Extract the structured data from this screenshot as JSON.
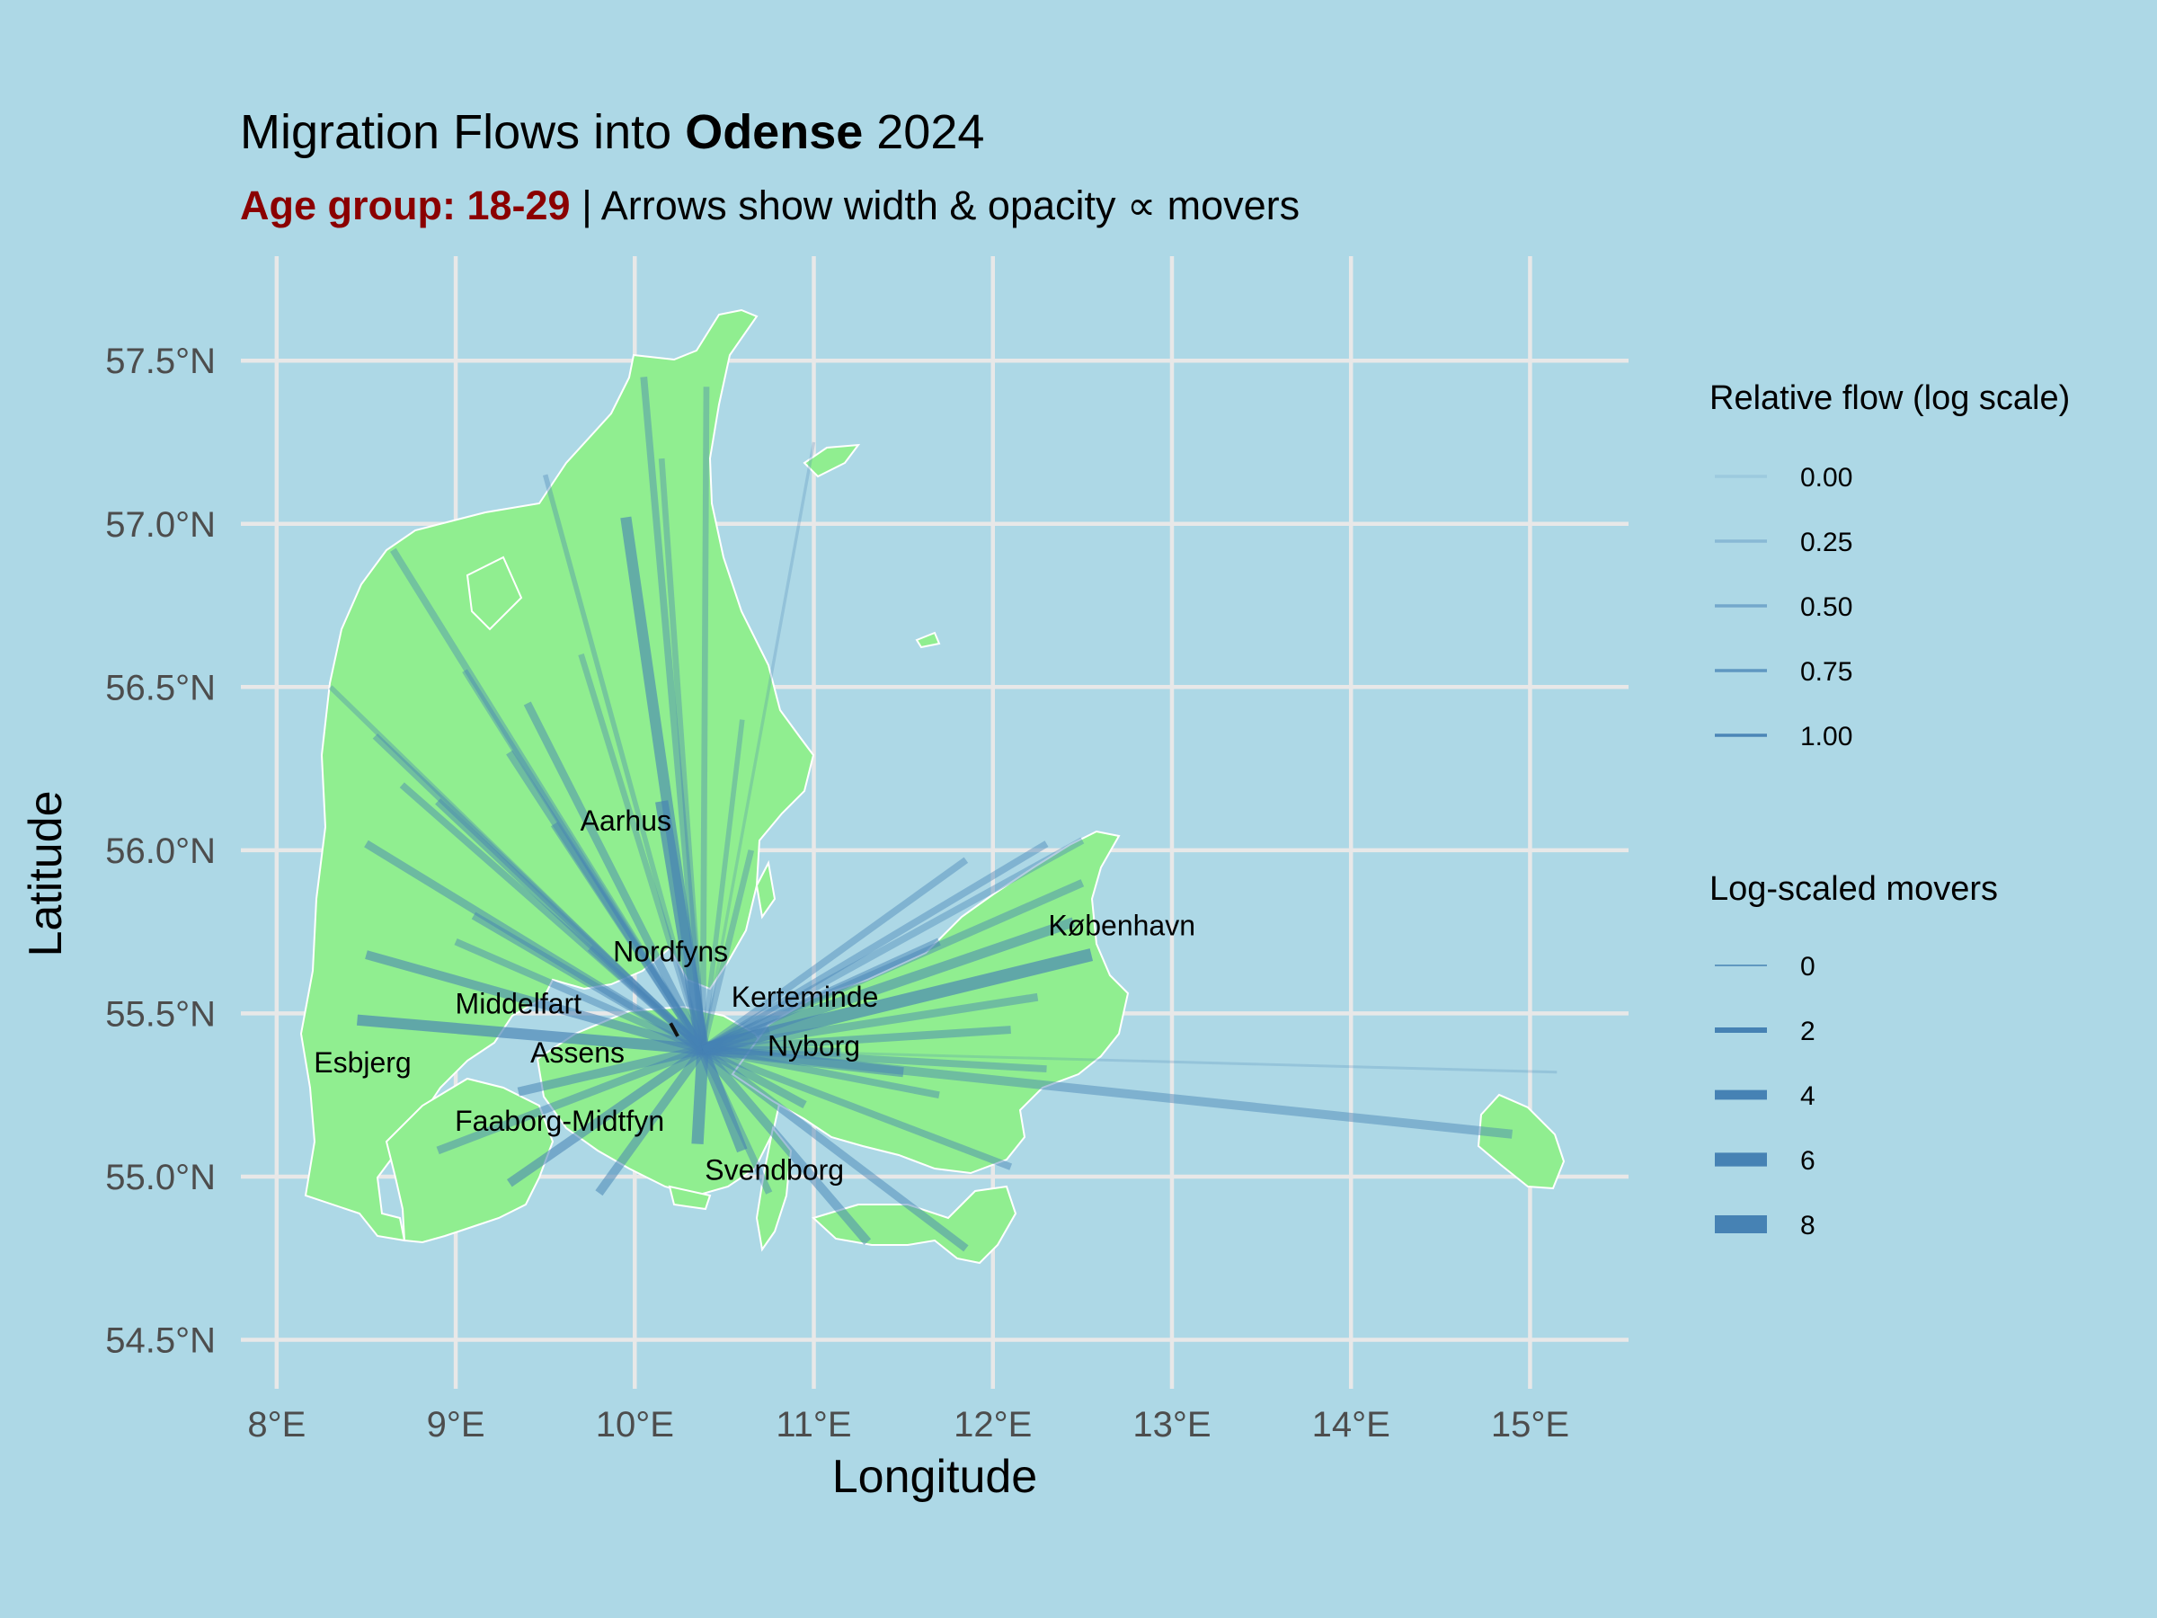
{
  "chart_data": {
    "type": "flow-map",
    "title": {
      "prefix": "Migration Flows into ",
      "city": "Odense",
      "suffix": " 2024"
    },
    "subtitle": {
      "age_label": "Age group: 18-29",
      "rest": " | Arrows show width & opacity ∝ movers"
    },
    "xlabel": "Longitude",
    "ylabel": "Latitude",
    "xlim": [
      7.8,
      15.55
    ],
    "ylim": [
      54.35,
      57.82
    ],
    "x_ticks": [
      {
        "value": 8,
        "label": "8°E"
      },
      {
        "value": 9,
        "label": "9°E"
      },
      {
        "value": 10,
        "label": "10°E"
      },
      {
        "value": 11,
        "label": "11°E"
      },
      {
        "value": 12,
        "label": "12°E"
      },
      {
        "value": 13,
        "label": "13°E"
      },
      {
        "value": 14,
        "label": "14°E"
      },
      {
        "value": 15,
        "label": "15°E"
      }
    ],
    "y_ticks": [
      {
        "value": 54.5,
        "label": "54.5°N"
      },
      {
        "value": 55.0,
        "label": "55.0°N"
      },
      {
        "value": 55.5,
        "label": "55.5°N"
      },
      {
        "value": 56.0,
        "label": "56.0°N"
      },
      {
        "value": 56.5,
        "label": "56.5°N"
      },
      {
        "value": 57.0,
        "label": "57.0°N"
      },
      {
        "value": 57.5,
        "label": "57.5°N"
      }
    ],
    "destination": {
      "name": "Odense",
      "lon": 10.38,
      "lat": 55.39
    },
    "flows": [
      {
        "lon": 8.45,
        "lat": 55.48,
        "rel": 0.95,
        "movers": 5.0
      },
      {
        "lon": 8.5,
        "lat": 55.68,
        "rel": 0.75,
        "movers": 4.0
      },
      {
        "lon": 8.5,
        "lat": 56.02,
        "rel": 0.6,
        "movers": 3.5
      },
      {
        "lon": 8.3,
        "lat": 56.5,
        "rel": 0.35,
        "movers": 2.0
      },
      {
        "lon": 8.55,
        "lat": 56.35,
        "rel": 0.5,
        "movers": 3.0
      },
      {
        "lon": 8.65,
        "lat": 56.92,
        "rel": 0.45,
        "movers": 3.0
      },
      {
        "lon": 8.7,
        "lat": 56.2,
        "rel": 0.55,
        "movers": 3.0
      },
      {
        "lon": 8.9,
        "lat": 56.15,
        "rel": 0.6,
        "movers": 3.5
      },
      {
        "lon": 9.05,
        "lat": 56.55,
        "rel": 0.45,
        "movers": 2.5
      },
      {
        "lon": 9.1,
        "lat": 55.8,
        "rel": 0.6,
        "movers": 3.5
      },
      {
        "lon": 9.0,
        "lat": 55.72,
        "rel": 0.55,
        "movers": 3.0
      },
      {
        "lon": 9.3,
        "lat": 56.3,
        "rel": 0.55,
        "movers": 3.5
      },
      {
        "lon": 9.4,
        "lat": 56.45,
        "rel": 0.6,
        "movers": 3.5
      },
      {
        "lon": 9.5,
        "lat": 57.15,
        "rel": 0.35,
        "movers": 2.0
      },
      {
        "lon": 9.55,
        "lat": 56.08,
        "rel": 0.6,
        "movers": 3.5
      },
      {
        "lon": 9.75,
        "lat": 55.7,
        "rel": 0.55,
        "movers": 3.0
      },
      {
        "lon": 9.7,
        "lat": 56.6,
        "rel": 0.4,
        "movers": 2.5
      },
      {
        "lon": 9.95,
        "lat": 57.02,
        "rel": 0.85,
        "movers": 5.0
      },
      {
        "lon": 10.05,
        "lat": 57.45,
        "rel": 0.5,
        "movers": 3.0
      },
      {
        "lon": 10.15,
        "lat": 57.2,
        "rel": 0.4,
        "movers": 2.5
      },
      {
        "lon": 10.4,
        "lat": 57.42,
        "rel": 0.4,
        "movers": 2.5
      },
      {
        "lon": 10.15,
        "lat": 56.15,
        "rel": 0.95,
        "movers": 6.0
      },
      {
        "lon": 10.6,
        "lat": 56.4,
        "rel": 0.35,
        "movers": 2.0
      },
      {
        "lon": 10.65,
        "lat": 56.0,
        "rel": 0.4,
        "movers": 2.5
      },
      {
        "lon": 11.0,
        "lat": 57.25,
        "rel": 0.15,
        "movers": 1.0
      },
      {
        "lon": 10.23,
        "lat": 55.48,
        "rel": 1.0,
        "movers": 1.5
      },
      {
        "lon": 9.35,
        "lat": 55.26,
        "rel": 0.7,
        "movers": 4.0
      },
      {
        "lon": 9.3,
        "lat": 54.98,
        "rel": 0.75,
        "movers": 4.0
      },
      {
        "lon": 8.9,
        "lat": 55.08,
        "rel": 0.6,
        "movers": 3.5
      },
      {
        "lon": 9.8,
        "lat": 54.95,
        "rel": 0.7,
        "movers": 4.0
      },
      {
        "lon": 10.35,
        "lat": 55.1,
        "rel": 0.9,
        "movers": 5.5
      },
      {
        "lon": 10.6,
        "lat": 55.08,
        "rel": 0.8,
        "movers": 5.0
      },
      {
        "lon": 10.75,
        "lat": 54.95,
        "rel": 0.55,
        "movers": 3.0
      },
      {
        "lon": 10.95,
        "lat": 55.22,
        "rel": 0.6,
        "movers": 3.5
      },
      {
        "lon": 11.3,
        "lat": 54.8,
        "rel": 0.65,
        "movers": 4.0
      },
      {
        "lon": 11.85,
        "lat": 54.78,
        "rel": 0.6,
        "movers": 3.5
      },
      {
        "lon": 11.7,
        "lat": 55.25,
        "rel": 0.55,
        "movers": 3.0
      },
      {
        "lon": 11.5,
        "lat": 55.32,
        "rel": 0.7,
        "movers": 4.5
      },
      {
        "lon": 12.1,
        "lat": 55.03,
        "rel": 0.55,
        "movers": 3.0
      },
      {
        "lon": 12.3,
        "lat": 55.33,
        "rel": 0.5,
        "movers": 3.0
      },
      {
        "lon": 12.1,
        "lat": 55.45,
        "rel": 0.6,
        "movers": 3.5
      },
      {
        "lon": 12.25,
        "lat": 55.55,
        "rel": 0.55,
        "movers": 3.5
      },
      {
        "lon": 12.55,
        "lat": 55.68,
        "rel": 0.95,
        "movers": 6.0
      },
      {
        "lon": 12.45,
        "lat": 55.78,
        "rel": 0.7,
        "movers": 4.5
      },
      {
        "lon": 12.5,
        "lat": 55.9,
        "rel": 0.55,
        "movers": 3.5
      },
      {
        "lon": 12.3,
        "lat": 56.02,
        "rel": 0.5,
        "movers": 3.0
      },
      {
        "lon": 12.5,
        "lat": 56.03,
        "rel": 0.45,
        "movers": 3.0
      },
      {
        "lon": 11.85,
        "lat": 55.97,
        "rel": 0.5,
        "movers": 3.0
      },
      {
        "lon": 11.7,
        "lat": 55.72,
        "rel": 0.6,
        "movers": 3.5
      },
      {
        "lon": 14.9,
        "lat": 55.13,
        "rel": 0.55,
        "movers": 4.0
      },
      {
        "lon": 15.15,
        "lat": 55.32,
        "rel": 0.1,
        "movers": 0.8
      },
      {
        "lon": 11.15,
        "lat": 55.38,
        "rel": 0.6,
        "movers": 4.0
      },
      {
        "lon": 10.75,
        "lat": 55.45,
        "rel": 0.6,
        "movers": 3.5
      }
    ],
    "labels": [
      {
        "text": "Aarhus",
        "lon": 9.95,
        "lat": 56.06
      },
      {
        "text": "Nordfyns",
        "lon": 10.2,
        "lat": 55.66
      },
      {
        "text": "Middelfart",
        "lon": 9.35,
        "lat": 55.5
      },
      {
        "text": "Kerteminde",
        "lon": 10.95,
        "lat": 55.52
      },
      {
        "text": "Nyborg",
        "lon": 11.0,
        "lat": 55.37
      },
      {
        "text": "Assens",
        "lon": 9.68,
        "lat": 55.35
      },
      {
        "text": "Esbjerg",
        "lon": 8.48,
        "lat": 55.32
      },
      {
        "text": "Faaborg-Midtfyn",
        "lon": 9.58,
        "lat": 55.14
      },
      {
        "text": "Svendborg",
        "lon": 10.78,
        "lat": 54.99
      },
      {
        "text": "København",
        "lon": 12.72,
        "lat": 55.74
      }
    ],
    "legend_relative": {
      "title": "Relative flow (log scale)",
      "entries": [
        {
          "label": "0.00",
          "value": 0.0
        },
        {
          "label": "0.25",
          "value": 0.25
        },
        {
          "label": "0.50",
          "value": 0.5
        },
        {
          "label": "0.75",
          "value": 0.75
        },
        {
          "label": "1.00",
          "value": 1.0
        }
      ]
    },
    "legend_movers": {
      "title": "Log-scaled movers",
      "entries": [
        {
          "label": "0",
          "value": 0
        },
        {
          "label": "2",
          "value": 2
        },
        {
          "label": "4",
          "value": 4
        },
        {
          "label": "6",
          "value": 6
        },
        {
          "label": "8",
          "value": 8
        }
      ]
    },
    "colors": {
      "background": "#add8e6",
      "land": "#90ee90",
      "flow": "#4682b4",
      "grid": "#e8e8e8",
      "accent": "#8b0000"
    }
  }
}
